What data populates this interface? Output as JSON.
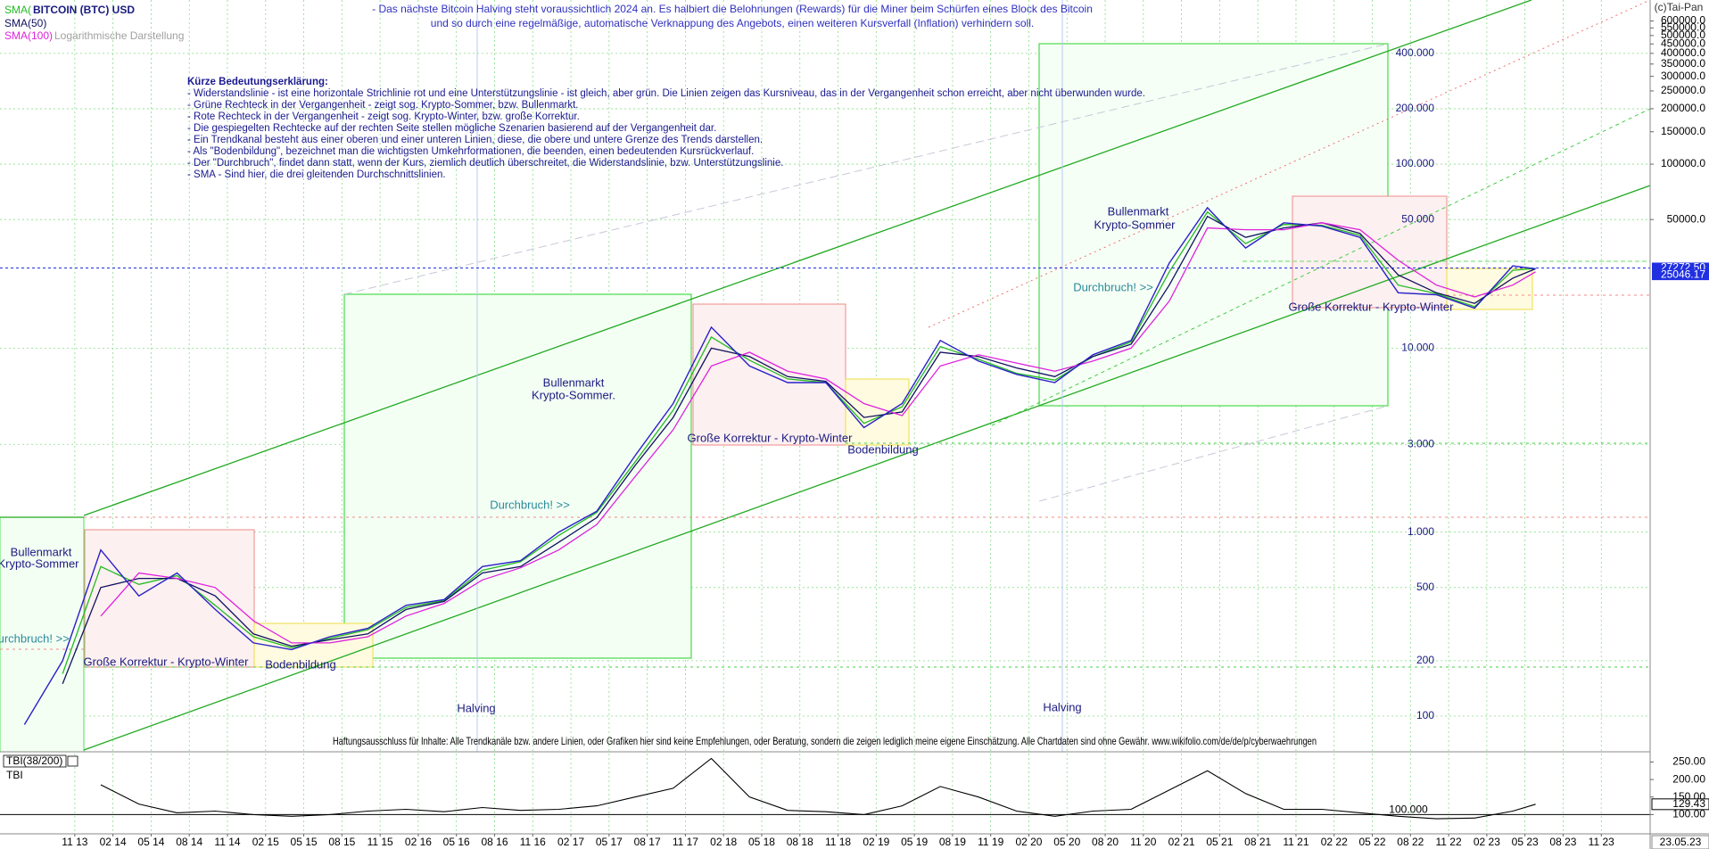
{
  "chart_data": [
    {
      "type": "line",
      "title": "BITCOIN (BTC) USD",
      "subtitle": "Logarithmische Darstellung",
      "copyright": "(c)Tai-Pan",
      "date_label": "23.05.23",
      "notes": [
        "- Das nächste Bitcoin Halving steht voraussichtlich 2024 an. Es halbiert die Belohnungen (Rewards) für die Miner beim Schürfen eines Block des Bitcoin",
        "und so durch eine regelmäßige, automatische Verknappung des Angebots, einen weiteren Kursverfall (Inflation) verhindern soll."
      ],
      "explanation": {
        "heading": "Kürze Bedeutungserklärung:",
        "lines": [
          "- Widerstandslinie - ist eine horizontale Strichlinie rot und eine Unterstützungslinie - ist gleich, aber grün. Die Linien zeigen das Kursniveau, das in der Vergangenheit schon erreicht, aber nicht überwunden wurde.",
          "- Grüne Rechteck in der Vergangenheit - zeigt sog. Krypto-Sommer, bzw. Bullenmarkt.",
          "- Rote Rechteck in der Vergangenheit - zeigt sog. Krypto-Winter, bzw. große Korrektur.",
          "- Die gespiegelten Rechtecke auf der rechten Seite stellen mögliche Szenarien basierend auf der Vergangenheit dar.",
          "- Ein Trendkanal besteht aus einer oberen und einer unteren Linien, diese, die obere und untere Grenze des Trends darstellen.",
          "- Als \"Bodenbildung\", bezeichnet man die wichtigsten Umkehrformationen, die beenden, einen bedeutenden Kursrückverlauf.",
          "- Der \"Durchbruch\", findet dann statt, wenn der Kurs, ziemlich deutlich überschreitet, die Widerstandslinie, bzw. Unterstützungslinie.",
          "- SMA - Sind hier, die drei gleitenden Durchschnittslinien."
        ]
      },
      "annotations": [
        "Bullenmarkt",
        "Krypto-Sommer",
        "Bullenmarkt",
        "Krypto-Sommer.",
        "Bullenmarkt",
        "Krypto-Sommer",
        "Große Korrektur - Krypto-Winter",
        "Große Korrektur - Krypto-Winter",
        "Große Korrektur - Krypto-Winter",
        "Bodenbildung",
        "Bodenbildung",
        "Durchbruch! >>",
        "Durchbruch! >>",
        "Durchbruch! >>",
        "Halving",
        "Halving"
      ],
      "disclaimer": "Haftungsausschluss für Inhalte: Alle Trendkanäle bzw. andere Linien, oder Grafiken hier sind keine Empfehlungen, oder Beratung, sondern die zeigen lediglich meine eigene Einschätzung. Alle Chartdaten sind ohne Gewähr.  www.wikifolio.com/de/de/p/cyberwaehrungen",
      "x": [
        2013.5,
        2013.75,
        2014.0,
        2014.25,
        2014.5,
        2014.75,
        2015.0,
        2015.25,
        2015.5,
        2015.75,
        2016.0,
        2016.25,
        2016.5,
        2016.75,
        2017.0,
        2017.25,
        2017.5,
        2017.75,
        2018.0,
        2018.25,
        2018.5,
        2018.75,
        2019.0,
        2019.25,
        2019.5,
        2019.75,
        2020.0,
        2020.25,
        2020.5,
        2020.75,
        2021.0,
        2021.25,
        2021.5,
        2021.75,
        2022.0,
        2022.25,
        2022.5,
        2022.75,
        2023.0,
        2023.25,
        2023.4
      ],
      "values": [
        90,
        200,
        800,
        450,
        600,
        380,
        250,
        230,
        270,
        300,
        400,
        430,
        650,
        700,
        1000,
        1300,
        2600,
        5000,
        13000,
        8000,
        6500,
        6500,
        3700,
        5000,
        11000,
        8500,
        7200,
        6500,
        9200,
        11000,
        29000,
        58000,
        35000,
        48000,
        46000,
        40000,
        20000,
        19500,
        16500,
        28000,
        27000
      ],
      "color": "#2a20c8",
      "series": [
        {
          "name": "SMA(",
          "color": "#22bb22",
          "values": [
            null,
            170,
            650,
            520,
            580,
            400,
            270,
            235,
            265,
            295,
            390,
            425,
            620,
            690,
            960,
            1280,
            2400,
            4600,
            11500,
            8600,
            6800,
            6500,
            3900,
            4800,
            10200,
            8700,
            7300,
            6700,
            9000,
            10800,
            26000,
            55000,
            37000,
            47000,
            46500,
            41000,
            22000,
            19800,
            16800,
            26500,
            27100
          ]
        },
        {
          "name": "SMA(50)",
          "color": "#101060",
          "values": [
            null,
            150,
            500,
            560,
            560,
            450,
            280,
            240,
            260,
            280,
            380,
            420,
            600,
            650,
            880,
            1200,
            2300,
            4200,
            10000,
            9000,
            7000,
            6600,
            4200,
            4500,
            9500,
            9000,
            7800,
            7000,
            9000,
            10500,
            22000,
            52000,
            40000,
            45000,
            48000,
            42000,
            25000,
            20000,
            17500,
            24000,
            27000
          ]
        },
        {
          "name": "SMA(100)",
          "color": "#dd22dd",
          "values": [
            null,
            null,
            350,
            600,
            560,
            500,
            330,
            250,
            250,
            270,
            350,
            410,
            550,
            640,
            800,
            1100,
            2000,
            3600,
            8000,
            9500,
            7500,
            6800,
            5000,
            4300,
            8000,
            9200,
            8300,
            7500,
            8500,
            10000,
            18000,
            45000,
            44000,
            44000,
            48000,
            44000,
            30000,
            22000,
            19000,
            22000,
            26000
          ]
        }
      ],
      "xlim": [
        2013.34,
        2024.15
      ],
      "xticks": [
        {
          "value": 2013.83,
          "label": "11 13"
        },
        {
          "value": 2014.08,
          "label": "02 14"
        },
        {
          "value": 2014.33,
          "label": "05 14"
        },
        {
          "value": 2014.58,
          "label": "08 14"
        },
        {
          "value": 2014.83,
          "label": "11 14"
        },
        {
          "value": 2015.08,
          "label": "02 15"
        },
        {
          "value": 2015.33,
          "label": "05 15"
        },
        {
          "value": 2015.58,
          "label": "08 15"
        },
        {
          "value": 2015.83,
          "label": "11 15"
        },
        {
          "value": 2016.08,
          "label": "02 16"
        },
        {
          "value": 2016.33,
          "label": "05 16"
        },
        {
          "value": 2016.58,
          "label": "08 16"
        },
        {
          "value": 2016.83,
          "label": "11 16"
        },
        {
          "value": 2017.08,
          "label": "02 17"
        },
        {
          "value": 2017.33,
          "label": "05 17"
        },
        {
          "value": 2017.58,
          "label": "08 17"
        },
        {
          "value": 2017.83,
          "label": "11 17"
        },
        {
          "value": 2018.08,
          "label": "02 18"
        },
        {
          "value": 2018.33,
          "label": "05 18"
        },
        {
          "value": 2018.58,
          "label": "08 18"
        },
        {
          "value": 2018.83,
          "label": "11 18"
        },
        {
          "value": 2019.08,
          "label": "02 19"
        },
        {
          "value": 2019.33,
          "label": "05 19"
        },
        {
          "value": 2019.58,
          "label": "08 19"
        },
        {
          "value": 2019.83,
          "label": "11 19"
        },
        {
          "value": 2020.08,
          "label": "02 20"
        },
        {
          "value": 2020.33,
          "label": "05 20"
        },
        {
          "value": 2020.58,
          "label": "08 20"
        },
        {
          "value": 2020.83,
          "label": "11 20"
        },
        {
          "value": 2021.08,
          "label": "02 21"
        },
        {
          "value": 2021.33,
          "label": "05 21"
        },
        {
          "value": 2021.58,
          "label": "08 21"
        },
        {
          "value": 2021.83,
          "label": "11 21"
        },
        {
          "value": 2022.08,
          "label": "02 22"
        },
        {
          "value": 2022.33,
          "label": "05 22"
        },
        {
          "value": 2022.58,
          "label": "08 22"
        },
        {
          "value": 2022.83,
          "label": "11 22"
        },
        {
          "value": 2023.08,
          "label": "02 23"
        },
        {
          "value": 2023.33,
          "label": "05 23"
        },
        {
          "value": 2023.58,
          "label": "08 23"
        },
        {
          "value": 2023.83,
          "label": "11 23"
        }
      ],
      "ylim": [
        64,
        780000
      ],
      "log_y": true,
      "grid": true,
      "yticks": [
        100,
        200,
        500,
        {
          "value": 1000,
          "label": "1.000"
        },
        {
          "value": 3000,
          "label": "3.000"
        },
        {
          "value": 10000,
          "label": "10.000"
        },
        {
          "value": 50000,
          "label": "50.000"
        },
        {
          "value": 100000,
          "label": "100.000"
        },
        {
          "value": 200000,
          "label": "200.000"
        },
        {
          "value": 400000,
          "label": "400.000"
        }
      ],
      "y2lim": [
        64,
        780000
      ],
      "y2ticks": [
        {
          "value": 50000,
          "label": "50000.0"
        },
        {
          "value": 100000,
          "label": "100000.0"
        },
        {
          "value": 150000,
          "label": "150000.0"
        },
        {
          "value": 200000,
          "label": "200000.0"
        },
        {
          "value": 250000,
          "label": "250000.0"
        },
        {
          "value": 300000,
          "label": "300000.0"
        },
        {
          "value": 350000,
          "label": "350000.0"
        },
        {
          "value": 400000,
          "label": "400000.0"
        },
        {
          "value": 450000,
          "label": "450000.0"
        },
        {
          "value": 500000,
          "label": "500000.0"
        },
        {
          "value": 550000,
          "label": "550000.0"
        },
        {
          "value": 600000,
          "label": "600000.0"
        }
      ],
      "price_markers": [
        {
          "value": 27272.5,
          "label": "27272.50",
          "color": "#2030e0"
        },
        {
          "value": 25046.17,
          "label": "25046.17",
          "color": "#2030e0"
        }
      ]
    },
    {
      "type": "line",
      "title": "TBI(38/200)",
      "name": "TBI",
      "color": "#000000",
      "x": [
        2014.0,
        2014.25,
        2014.5,
        2014.75,
        2015.0,
        2015.25,
        2015.5,
        2015.75,
        2016.0,
        2016.25,
        2016.5,
        2016.75,
        2017.0,
        2017.25,
        2017.5,
        2017.75,
        2018.0,
        2018.25,
        2018.5,
        2018.75,
        2019.0,
        2019.25,
        2019.5,
        2019.75,
        2020.0,
        2020.25,
        2020.5,
        2020.75,
        2021.0,
        2021.25,
        2021.5,
        2021.75,
        2022.0,
        2022.25,
        2022.5,
        2022.75,
        2023.0,
        2023.25,
        2023.4
      ],
      "values": [
        185,
        130,
        105,
        110,
        100,
        95,
        100,
        110,
        115,
        108,
        120,
        112,
        115,
        125,
        150,
        175,
        260,
        150,
        112,
        108,
        100,
        125,
        180,
        150,
        110,
        95,
        110,
        115,
        170,
        225,
        160,
        115,
        115,
        105,
        95,
        88,
        90,
        110,
        129.43
      ],
      "ylim": [
        45,
        274
      ],
      "yticks": [
        {
          "value": 250,
          "label": "250.00"
        },
        {
          "value": 200,
          "label": "200.00"
        },
        {
          "value": 150,
          "label": "150.00"
        },
        {
          "value": 100,
          "label": "100.00"
        }
      ],
      "level": {
        "value": 100,
        "label": "100.000"
      },
      "last": {
        "value": 129.43,
        "label": "129.43"
      }
    }
  ]
}
